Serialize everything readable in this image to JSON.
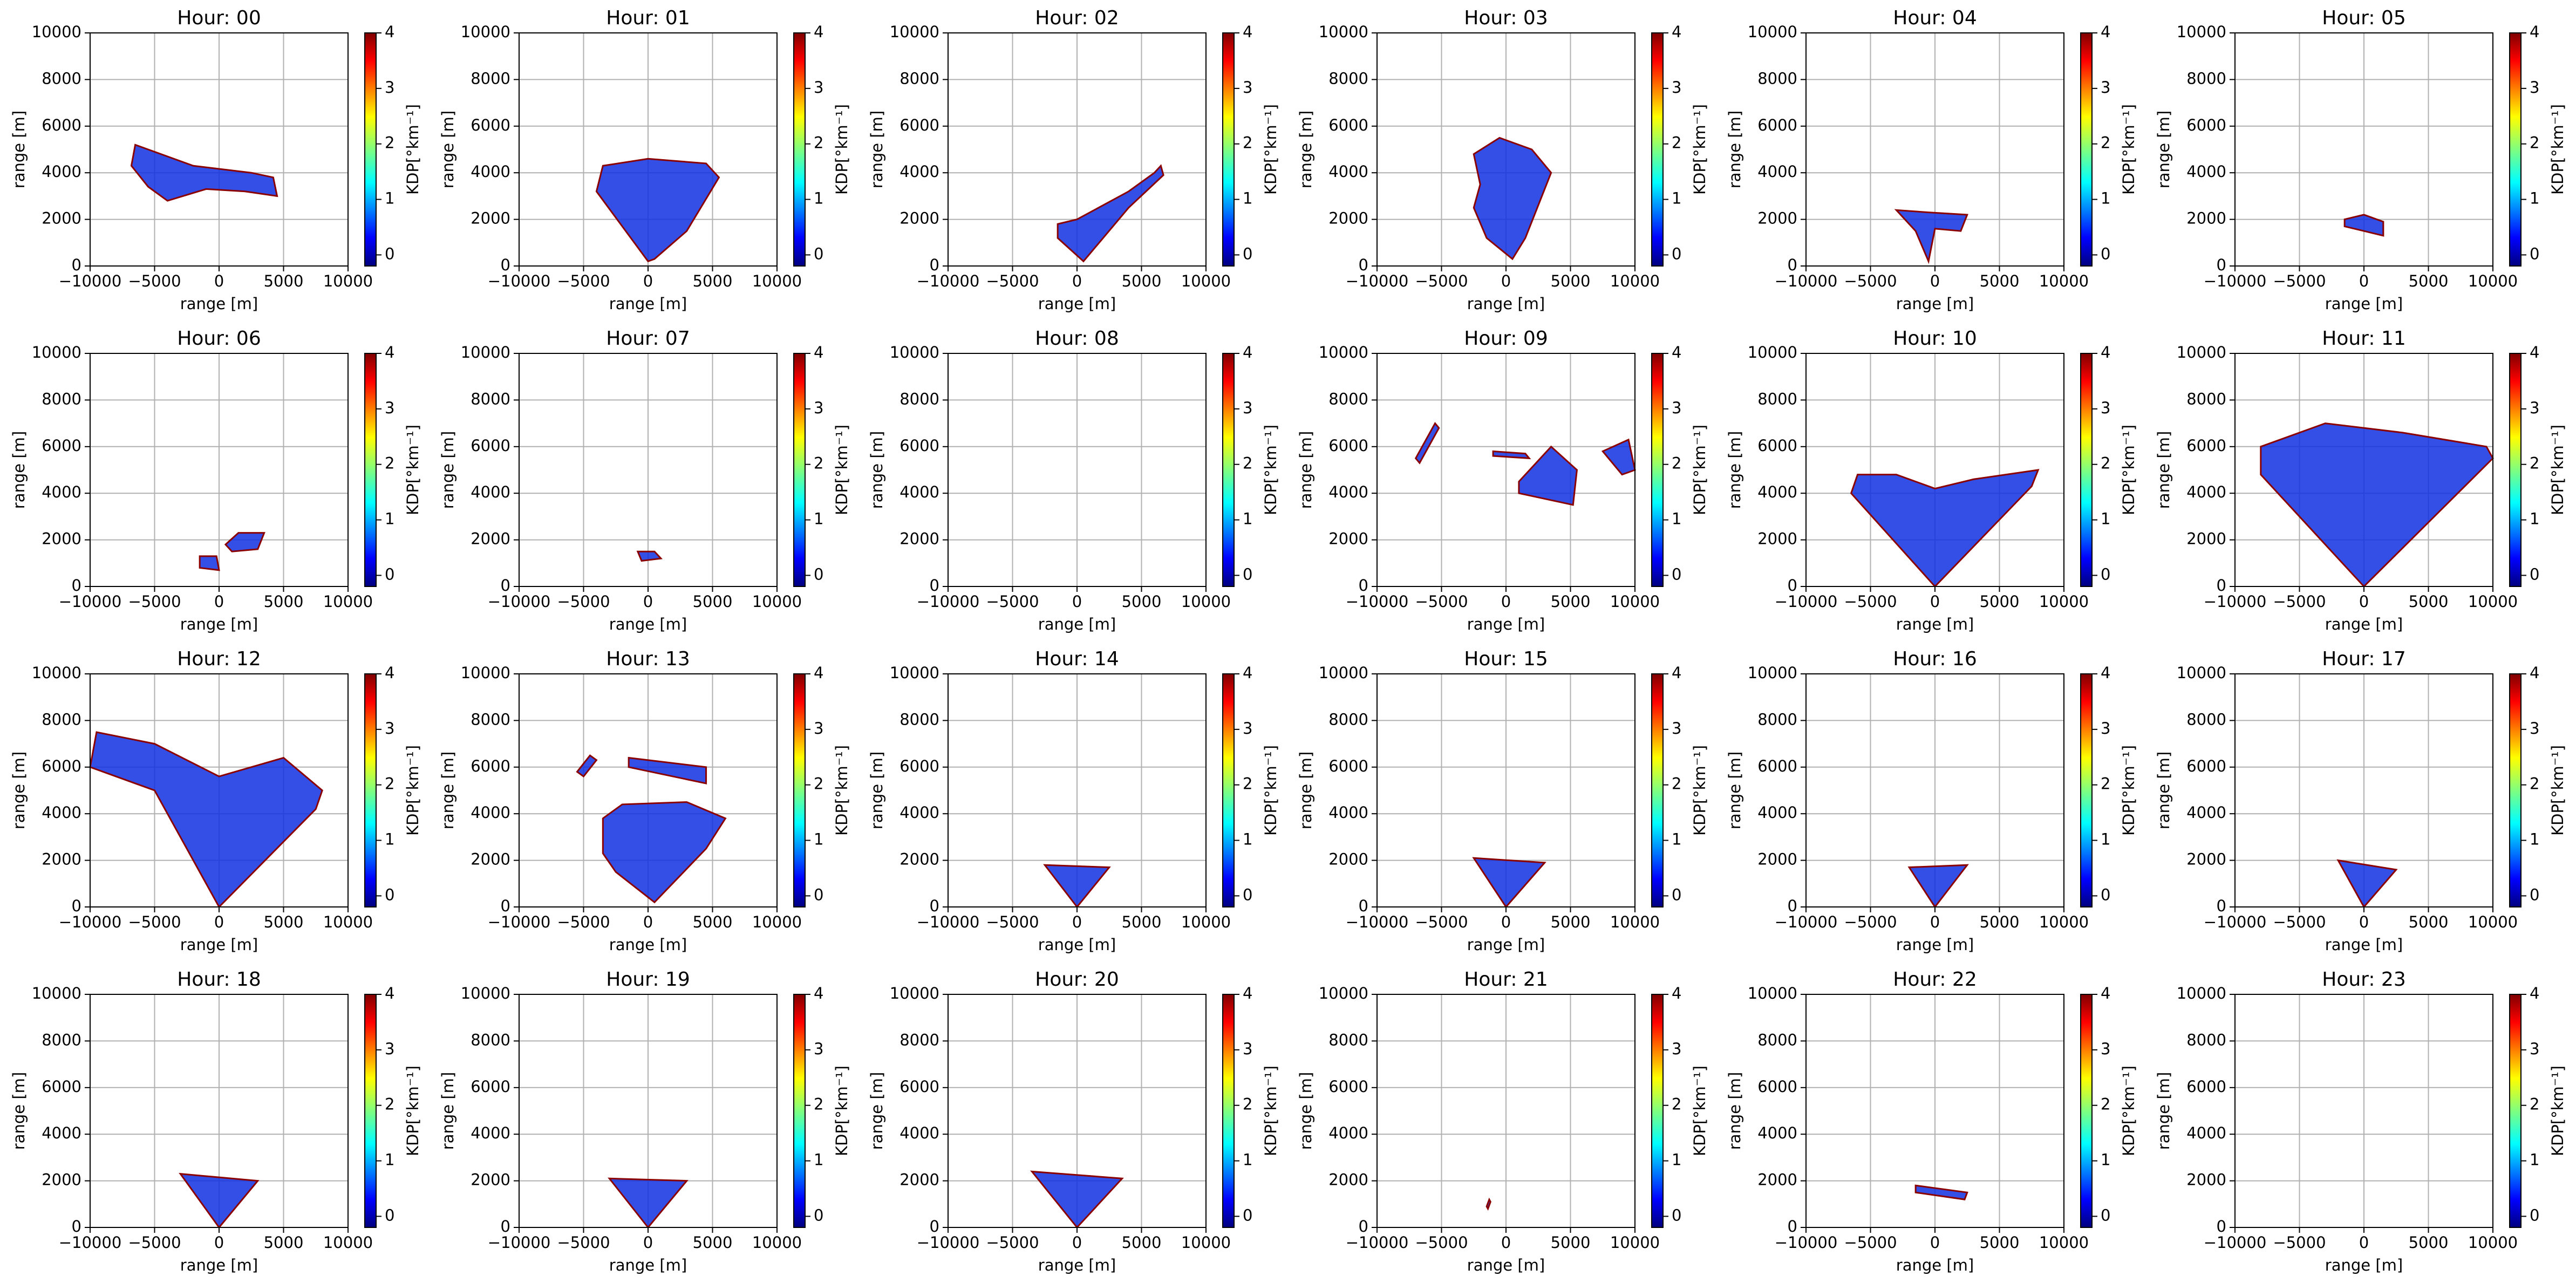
{
  "axes": {
    "xlabel": "range [m]",
    "ylabel": "range [m]",
    "xlim": [
      -10000,
      10000
    ],
    "ylim": [
      0,
      10000
    ],
    "xticks": [
      {
        "value": -10000,
        "label": "−10000"
      },
      {
        "value": -5000,
        "label": "−5000"
      },
      0,
      5000,
      10000
    ],
    "yticks": [
      0,
      2000,
      4000,
      6000,
      8000,
      10000
    ],
    "grid": true,
    "echo_color": "#1030e0",
    "colorbar_label": "KDP[°km⁻¹]",
    "clim": [
      -0.2,
      4
    ],
    "cticks": [
      0,
      1,
      2,
      3,
      4
    ]
  },
  "chart_data": [
    {
      "type": "image",
      "title": "Hour: 00",
      "echo": [
        {
          "x": [
            -6800,
            -6500,
            -2000,
            2500,
            4200,
            4500,
            2000,
            -1000,
            -4000,
            -5500
          ],
          "y": [
            4300,
            5200,
            4300,
            4000,
            3800,
            3000,
            3200,
            3300,
            2800,
            3400
          ]
        }
      ]
    },
    {
      "type": "image",
      "title": "Hour: 01",
      "echo": [
        {
          "x": [
            0,
            -4000,
            -3500,
            0,
            4500,
            5500,
            3000,
            500
          ],
          "y": [
            200,
            3200,
            4300,
            4600,
            4400,
            3800,
            1500,
            300
          ]
        }
      ]
    },
    {
      "type": "image",
      "title": "Hour: 02",
      "echo": [
        {
          "x": [
            -1500,
            0,
            4000,
            6000,
            6500,
            6700,
            4000,
            500,
            -1500
          ],
          "y": [
            1800,
            2000,
            3200,
            4000,
            4300,
            3900,
            2500,
            200,
            1200
          ]
        }
      ]
    },
    {
      "type": "image",
      "title": "Hour: 03",
      "echo": [
        {
          "x": [
            -2000,
            -2500,
            -500,
            2000,
            3500,
            1500,
            500,
            -1500,
            -2500
          ],
          "y": [
            3500,
            4800,
            5500,
            5000,
            4000,
            1200,
            300,
            1200,
            2500
          ]
        }
      ]
    },
    {
      "type": "image",
      "title": "Hour: 04",
      "echo": [
        {
          "x": [
            -3000,
            -500,
            2500,
            2000,
            0,
            -500,
            -1500
          ],
          "y": [
            2400,
            2300,
            2200,
            1500,
            1600,
            200,
            1500
          ]
        }
      ]
    },
    {
      "type": "image",
      "title": "Hour: 05",
      "echo": [
        {
          "x": [
            -1500,
            0,
            1500,
            1500,
            0,
            -1500
          ],
          "y": [
            2000,
            2200,
            1900,
            1300,
            1500,
            1700
          ]
        }
      ]
    },
    {
      "type": "image",
      "title": "Hour: 06",
      "echo": [
        {
          "x": [
            -1500,
            -200,
            0,
            -1500
          ],
          "y": [
            1300,
            1300,
            700,
            800
          ]
        },
        {
          "x": [
            500,
            1500,
            3500,
            3000,
            1000
          ],
          "y": [
            1800,
            2300,
            2300,
            1600,
            1500
          ]
        }
      ]
    },
    {
      "type": "image",
      "title": "Hour: 07",
      "echo": [
        {
          "x": [
            -800,
            500,
            1000,
            -500
          ],
          "y": [
            1500,
            1500,
            1200,
            1100
          ]
        }
      ]
    },
    {
      "type": "image",
      "title": "Hour: 08",
      "echo": []
    },
    {
      "type": "image",
      "title": "Hour: 09",
      "echo": [
        {
          "x": [
            -7000,
            -5500,
            -5200,
            -6700
          ],
          "y": [
            5500,
            7000,
            6800,
            5300
          ]
        },
        {
          "x": [
            -1000,
            1500,
            1800,
            -1000
          ],
          "y": [
            5800,
            5700,
            5500,
            5600
          ]
        },
        {
          "x": [
            1000,
            3500,
            5500,
            5200,
            1000
          ],
          "y": [
            4500,
            6000,
            5000,
            3500,
            4000
          ]
        },
        {
          "x": [
            7500,
            9500,
            10000,
            9000
          ],
          "y": [
            5800,
            6300,
            5000,
            4800
          ]
        }
      ]
    },
    {
      "type": "image",
      "title": "Hour: 10",
      "echo": [
        {
          "x": [
            -6000,
            -6500,
            0,
            7500,
            8000,
            3000,
            0,
            -3000
          ],
          "y": [
            4800,
            4000,
            0,
            4300,
            5000,
            4600,
            4200,
            4800
          ]
        }
      ]
    },
    {
      "type": "image",
      "title": "Hour: 11",
      "echo": [
        {
          "x": [
            -8000,
            -8000,
            -3000,
            3000,
            9500,
            10000,
            0
          ],
          "y": [
            4800,
            6000,
            7000,
            6600,
            6000,
            5500,
            0
          ]
        }
      ]
    },
    {
      "type": "image",
      "title": "Hour: 12",
      "echo": [
        {
          "x": [
            -10000,
            -9500,
            -5000,
            0,
            5000,
            8000,
            7500,
            0,
            -5000
          ],
          "y": [
            6000,
            7500,
            7000,
            5600,
            6400,
            5000,
            4200,
            0,
            5000
          ]
        }
      ]
    },
    {
      "type": "image",
      "title": "Hour: 13",
      "echo": [
        {
          "x": [
            -5500,
            -4500,
            -4000,
            -5000
          ],
          "y": [
            5800,
            6500,
            6300,
            5600
          ]
        },
        {
          "x": [
            -1500,
            4500,
            4500,
            -1500
          ],
          "y": [
            6400,
            6000,
            5300,
            6000
          ]
        },
        {
          "x": [
            -3500,
            -2000,
            3000,
            6000,
            4500,
            500,
            -2500,
            -3500
          ],
          "y": [
            3800,
            4400,
            4500,
            3800,
            2500,
            200,
            1500,
            2300
          ]
        }
      ]
    },
    {
      "type": "image",
      "title": "Hour: 14",
      "echo": [
        {
          "x": [
            -2500,
            2500,
            0
          ],
          "y": [
            1800,
            1700,
            0
          ]
        }
      ]
    },
    {
      "type": "image",
      "title": "Hour: 15",
      "echo": [
        {
          "x": [
            -2500,
            3000,
            0
          ],
          "y": [
            2100,
            1900,
            0
          ]
        }
      ]
    },
    {
      "type": "image",
      "title": "Hour: 16",
      "echo": [
        {
          "x": [
            -2000,
            2500,
            0
          ],
          "y": [
            1700,
            1800,
            0
          ]
        }
      ]
    },
    {
      "type": "image",
      "title": "Hour: 17",
      "echo": [
        {
          "x": [
            -2000,
            2500,
            0
          ],
          "y": [
            2000,
            1600,
            0
          ]
        }
      ]
    },
    {
      "type": "image",
      "title": "Hour: 18",
      "echo": [
        {
          "x": [
            -3000,
            3000,
            0
          ],
          "y": [
            2300,
            2000,
            0
          ]
        }
      ]
    },
    {
      "type": "image",
      "title": "Hour: 19",
      "echo": [
        {
          "x": [
            -3000,
            3000,
            0
          ],
          "y": [
            2100,
            2000,
            0
          ]
        }
      ]
    },
    {
      "type": "image",
      "title": "Hour: 20",
      "echo": [
        {
          "x": [
            -3500,
            3500,
            0
          ],
          "y": [
            2400,
            2100,
            0
          ]
        }
      ]
    },
    {
      "type": "image",
      "title": "Hour: 21",
      "echo": [
        {
          "x": [
            -1500,
            -1300,
            -1200,
            -1400
          ],
          "y": [
            900,
            1200,
            1100,
            800
          ]
        }
      ]
    },
    {
      "type": "image",
      "title": "Hour: 22",
      "echo": [
        {
          "x": [
            -1500,
            2500,
            2300,
            -1500
          ],
          "y": [
            1800,
            1500,
            1200,
            1500
          ]
        }
      ]
    },
    {
      "type": "image",
      "title": "Hour: 23",
      "echo": []
    }
  ]
}
